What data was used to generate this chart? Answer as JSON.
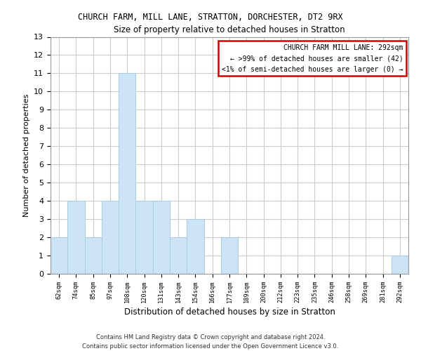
{
  "title": "CHURCH FARM, MILL LANE, STRATTON, DORCHESTER, DT2 9RX",
  "subtitle": "Size of property relative to detached houses in Stratton",
  "xlabel": "Distribution of detached houses by size in Stratton",
  "ylabel": "Number of detached properties",
  "bar_color": "#cce4f5",
  "bar_edge_color": "#a8cce0",
  "bin_labels": [
    "62sqm",
    "74sqm",
    "85sqm",
    "97sqm",
    "108sqm",
    "120sqm",
    "131sqm",
    "143sqm",
    "154sqm",
    "166sqm",
    "177sqm",
    "189sqm",
    "200sqm",
    "212sqm",
    "223sqm",
    "235sqm",
    "246sqm",
    "258sqm",
    "269sqm",
    "281sqm",
    "292sqm"
  ],
  "counts": [
    2,
    4,
    2,
    4,
    11,
    4,
    4,
    2,
    3,
    0,
    2,
    0,
    0,
    0,
    0,
    0,
    0,
    0,
    0,
    0,
    1
  ],
  "ylim": [
    0,
    13
  ],
  "yticks": [
    0,
    1,
    2,
    3,
    4,
    5,
    6,
    7,
    8,
    9,
    10,
    11,
    12,
    13
  ],
  "legend_title": "CHURCH FARM MILL LANE: 292sqm",
  "legend_line1": "← >99% of detached houses are smaller (42)",
  "legend_line2": "<1% of semi-detached houses are larger (0) →",
  "legend_box_color": "#ffffff",
  "legend_box_edgecolor": "#cc0000",
  "footer1": "Contains HM Land Registry data © Crown copyright and database right 2024.",
  "footer2": "Contains public sector information licensed under the Open Government Licence v3.0.",
  "grid_color": "#cccccc",
  "background_color": "#ffffff"
}
